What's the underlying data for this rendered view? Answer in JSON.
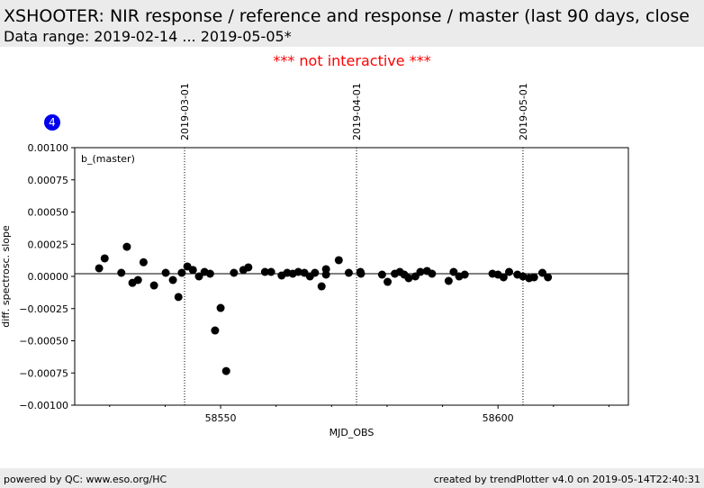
{
  "header": {
    "title": "XSHOOTER: NIR response / reference and response / master (last 90 days, close",
    "subtitle": "Data range: 2019-02-14 ... 2019-05-05*"
  },
  "notice": "*** not interactive ***",
  "badge": "4",
  "footer": {
    "left": "powered by QC: www.eso.org/HC",
    "right": "created by trendPlotter v4.0 on 2019-05-14T22:40:31"
  },
  "chart_data": {
    "type": "scatter",
    "annotation": "b_(master)",
    "x_label": "MJD_OBS",
    "y_label": "diff. spectrosc. slope",
    "color": "#000000",
    "x": [
      58528.1,
      58529.1,
      58532.1,
      58533.1,
      58534.1,
      58535.1,
      58536.1,
      58538.0,
      58540.1,
      58541.4,
      58542.4,
      58543.0,
      58544.0,
      58545.0,
      58546.1,
      58547.1,
      58548.1,
      58549.0,
      58550.0,
      58551.0,
      58552.4,
      58554.1,
      58555.0,
      58558.0,
      58559.1,
      58561.0,
      58562.0,
      58563.0,
      58564.0,
      58565.1,
      58566.1,
      58567.0,
      58568.2,
      58569.0,
      58569.0,
      58571.3,
      58573.1,
      58575.2,
      58575.3,
      58579.1,
      58580.1,
      58581.4,
      58582.3,
      58583.1,
      58583.9,
      58585.1,
      58586.0,
      58587.2,
      58588.1,
      58591.1,
      58592.0,
      58593.0,
      58594.0,
      58599.0,
      58600.0,
      58601.0,
      58602.0,
      58603.5,
      58604.5,
      58605.6,
      58606.5,
      58608.0,
      58609.0
    ],
    "values": [
      6.3e-05,
      0.00014,
      2.8e-05,
      0.00023,
      -5e-05,
      -2.8e-05,
      0.00011,
      -7e-05,
      2.8e-05,
      -2.8e-05,
      -0.00016,
      2.8e-05,
      7.7e-05,
      5e-05,
      0.0,
      3.5e-05,
      2.1e-05,
      -0.00042,
      -0.000245,
      -0.000735,
      2.8e-05,
      5e-05,
      7e-05,
      3.5e-05,
      3.5e-05,
      7e-06,
      2.8e-05,
      2.1e-05,
      3.5e-05,
      2.8e-05,
      0.0,
      2.8e-05,
      -7.7e-05,
      5.6e-05,
      1.4e-05,
      0.000126,
      2.8e-05,
      3.5e-05,
      2.1e-05,
      1.4e-05,
      -4.2e-05,
      2.1e-05,
      3.5e-05,
      1.4e-05,
      -1.4e-05,
      0.0,
      3.5e-05,
      4.2e-05,
      2.1e-05,
      -3.5e-05,
      3.5e-05,
      0.0,
      1.4e-05,
      2.1e-05,
      1.4e-05,
      -7e-06,
      3.5e-05,
      1.4e-05,
      0.0,
      -1.4e-05,
      -7e-06,
      2.8e-05,
      -7e-06
    ],
    "xlim": [
      58523.7,
      58623.5
    ],
    "ylim": [
      -0.001,
      0.001
    ],
    "xticks": [
      58550,
      58600
    ],
    "xminor_ticks": [
      58530,
      58540,
      58560,
      58570,
      58580,
      58590,
      58610,
      58620
    ],
    "yticks": [
      {
        "value": 0.001,
        "label": "0.00100"
      },
      {
        "value": 0.00075,
        "label": "0.00075"
      },
      {
        "value": 0.0005,
        "label": "0.00050"
      },
      {
        "value": 0.00025,
        "label": "0.00025"
      },
      {
        "value": 0,
        "label": "0.00000"
      },
      {
        "value": -0.00025,
        "label": "−0.00025"
      },
      {
        "value": -0.0005,
        "label": "−0.00050"
      },
      {
        "value": -0.00075,
        "label": "−0.00075"
      },
      {
        "value": -0.001,
        "label": "−0.00100"
      }
    ],
    "date_markers": [
      {
        "value": 58543.5,
        "label": "2019-03-01"
      },
      {
        "value": 58574.5,
        "label": "2019-04-01"
      },
      {
        "value": 58604.5,
        "label": "2019-05-01"
      }
    ],
    "hline": 0
  }
}
